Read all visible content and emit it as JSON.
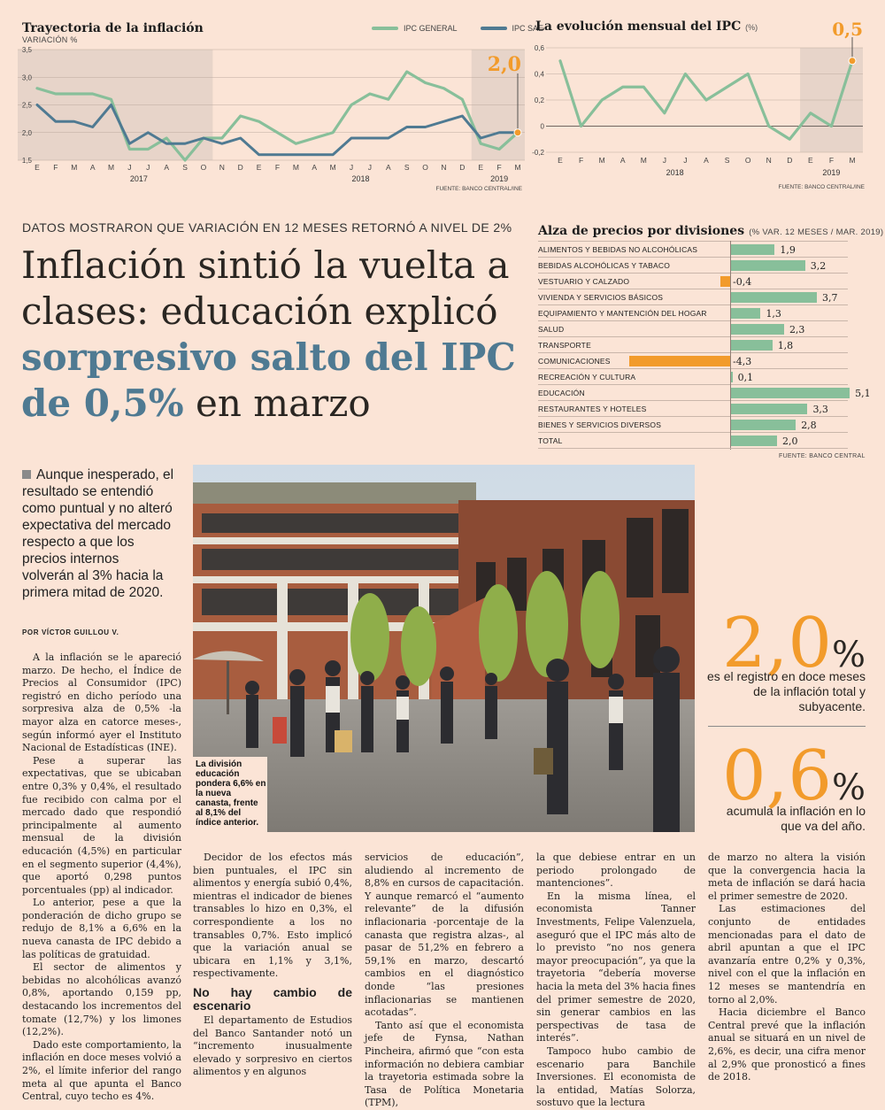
{
  "chart_left": {
    "title": "Trayectoria de la inflación",
    "ylabel": "VARIACIÓN %",
    "legend": [
      {
        "name": "IPC GENERAL",
        "color": "#88bf9a"
      },
      {
        "name": "IPC SAE",
        "color": "#4f7a92"
      }
    ],
    "highlight_value": "2,0",
    "source": "FUENTE: BANCO CENTRAL/INE",
    "year_labels": [
      "2017",
      "2018",
      "2019"
    ]
  },
  "chart_right": {
    "title": "La evolución mensual del IPC",
    "unit": "(%)",
    "highlight_value": "0,5",
    "source": "FUENTE: BANCO CENTRAL/INE",
    "year_labels": [
      "2018",
      "2019"
    ]
  },
  "chart_data": [
    {
      "type": "line",
      "title": "Trayectoria de la inflación",
      "ylabel": "VARIACIÓN %",
      "ylim": [
        1.5,
        3.5
      ],
      "yticks": [
        "1,5",
        "2,0",
        "2,5",
        "3,0",
        "3,5"
      ],
      "categories": [
        "E",
        "F",
        "M",
        "A",
        "M",
        "J",
        "J",
        "A",
        "S",
        "O",
        "N",
        "D",
        "E",
        "F",
        "M",
        "A",
        "M",
        "J",
        "J",
        "A",
        "S",
        "O",
        "N",
        "D",
        "E",
        "F",
        "M"
      ],
      "series": [
        {
          "name": "IPC GENERAL",
          "color": "#88bf9a",
          "values": [
            2.8,
            2.7,
            2.7,
            2.7,
            2.6,
            1.7,
            1.7,
            1.9,
            1.5,
            1.9,
            1.9,
            2.3,
            2.2,
            2.0,
            1.8,
            1.9,
            2.0,
            2.5,
            2.7,
            2.6,
            3.1,
            2.9,
            2.8,
            2.6,
            1.8,
            1.7,
            2.0
          ]
        },
        {
          "name": "IPC SAE",
          "color": "#4f7a92",
          "values": [
            2.5,
            2.2,
            2.2,
            2.1,
            2.5,
            1.8,
            2.0,
            1.8,
            1.8,
            1.9,
            1.8,
            1.9,
            1.6,
            1.6,
            1.6,
            1.6,
            1.6,
            1.9,
            1.9,
            1.9,
            2.1,
            2.1,
            2.2,
            2.3,
            1.9,
            2.0,
            2.0
          ]
        }
      ],
      "grid": true
    },
    {
      "type": "line",
      "title": "La evolución mensual del IPC",
      "ylim": [
        -0.2,
        0.6
      ],
      "yticks": [
        "-0,2",
        "0",
        "0,2",
        "0,4",
        "0,6"
      ],
      "categories": [
        "E",
        "F",
        "M",
        "A",
        "M",
        "J",
        "J",
        "A",
        "S",
        "O",
        "N",
        "D",
        "E",
        "F",
        "M"
      ],
      "series": [
        {
          "name": "",
          "color": "#88bf9a",
          "values": [
            0.5,
            0.0,
            0.2,
            0.3,
            0.3,
            0.1,
            0.4,
            0.2,
            0.3,
            0.4,
            0.0,
            -0.1,
            0.1,
            0.0,
            0.5
          ]
        }
      ],
      "grid": true
    },
    {
      "type": "bar",
      "title": "Alza de precios por divisiones",
      "subtitle": "(% VAR. 12 MESES / MAR. 2019)",
      "categories": [
        "ALIMENTOS Y BEBIDAS NO ALCOHÓLICAS",
        "BEBIDAS ALCOHÓLICAS Y TABACO",
        "VESTUARIO Y CALZADO",
        "VIVIENDA Y SERVICIOS BÁSICOS",
        "EQUIPAMIENTO Y MANTENCIÓN DEL HOGAR",
        "SALUD",
        "TRANSPORTE",
        "COMUNICACIONES",
        "RECREACIÓN Y CULTURA",
        "EDUCACIÓN",
        "RESTAURANTES Y HOTELES",
        "BIENES Y SERVICIOS DIVERSOS",
        "TOTAL"
      ],
      "values": [
        1.9,
        3.2,
        -0.4,
        3.7,
        1.3,
        2.3,
        1.8,
        -4.3,
        0.1,
        5.1,
        3.3,
        2.8,
        2.0
      ],
      "value_labels": [
        "1,9",
        "3,2",
        "-0,4",
        "3,7",
        "1,3",
        "2,3",
        "1,8",
        "-4,3",
        "0,1",
        "5,1",
        "3,3",
        "2,8",
        "2,0"
      ],
      "positive_color": "#88bf9a",
      "negative_color": "#f29b2b",
      "source": "FUENTE: BANCO CENTRAL"
    }
  ],
  "bar_chart": {
    "title": "Alza de precios por divisiones",
    "subtitle": "(% VAR. 12 MESES / MAR. 2019)",
    "source": "FUENTE: BANCO CENTRAL"
  },
  "article": {
    "kicker": "DATOS MOSTRARON QUE VARIACIÓN EN 12 MESES RETORNÓ A NIVEL DE 2%",
    "headline_1": "Inflación sintió la vuelta a",
    "headline_2": "clases: educación explicó",
    "headline_3": "sorpresivo salto del IPC",
    "headline_4a": "de 0,5%",
    "headline_4b": " en marzo",
    "lead": "Aunque inesperado, el resultado se entendió como puntual y no alteró expectativa del mercado respecto a que los precios internos volverán al 3% hacia la primera mitad de 2020.",
    "byline": "POR VÍCTOR GUILLOU V.",
    "photo_caption": "La división educación pondera 6,6% en la nueva canasta, frente al 8,1% del índice anterior.",
    "col1": [
      "A la inflación se le apareció marzo. De hecho, el Índice de Precios al Consumidor (IPC) registró en dicho período una sorpresiva alza de 0,5% -la mayor alza en catorce meses-, según informó ayer el Instituto Nacional de Estadísticas (INE).",
      "Pese a superar las expectativas, que se ubicaban entre 0,3% y 0,4%, el resultado fue recibido con calma por el mercado dado que respondió principalmente al aumento mensual de la división educación (4,5%) en particular en el segmento superior (4,4%), que aportó 0,298 puntos porcentuales (pp) al indicador.",
      "Lo anterior, pese a que la ponderación de dicho grupo se redujo de 8,1% a 6,6% en la nueva canasta de IPC debido a las políticas de gratuidad.",
      "El sector de alimentos y bebidas no alcohólicas avanzó 0,8%, aportando 0,159 pp, destacando los incrementos del tomate (12,7%) y los limones (12,2%).",
      "Dado este comportamiento, la inflación en doce meses volvió a 2%, el límite inferior del rango meta al que apunta el Banco Central, cuyo techo es 4%."
    ],
    "col2": [
      "Decidor de los efectos más bien puntuales, el IPC sin alimentos y energía subió 0,4%, mientras el indicador de bienes transables lo hizo en 0,3%, el correspondiente a los no transables 0,7%. Esto implicó que la variación anual se ubicara en 1,1% y 3,1%, respectivamente."
    ],
    "subhead": "No hay cambio de escenario",
    "col2b": [
      "El departamento de Estudios del Banco Santander notó un “incremento inusualmente elevado y sorpresivo en ciertos alimentos y en algunos"
    ],
    "col3": [
      "servicios de educación”, aludiendo al incremento de 8,8% en cursos de capacitación. Y aunque remarcó el “aumento relevante” de la difusión inflacionaria -porcentaje de la canasta que registra alzas-, al pasar de 51,2% en febrero a 59,1% en marzo, descartó cambios en el diagnóstico donde “las presiones inflacionarias se mantienen acotadas”.",
      "Tanto así que el economista jefe de Fynsa, Nathan Pincheira, afirmó que “con esta información no debiera cambiar la trayetoria estimada sobre la Tasa de Política Monetaria (TPM),"
    ],
    "col4": [
      "la que debiese entrar en un periodo prolongado de mantenciones”.",
      "En la misma línea, el economista Tanner Investments, Felipe Valenzuela, aseguró que el IPC más alto de lo previsto “no nos genera mayor preocupación”, ya que la trayetoria “debería moverse hacia la meta del 3% hacia fines del primer semestre de 2020, sin generar cambios en las perspectivas de tasa de interés”.",
      "Tampoco hubo cambio de escenario para Banchile Inversiones. El economista de la entidad, Matías Solorza, sostuvo que la lectura"
    ],
    "col5": [
      "de marzo no altera la visión que la convergencia hacia la meta de inflación se dará hacia el primer semestre de 2020.",
      "Las estimaciones del conjunto de entidades mencionadas para el dato de abril apuntan a que el IPC avanzaría entre 0,2% y 0,3%, nivel con el que la inflación en 12 meses se mantendría en torno al 2,0%.",
      "Hacia diciembre el Banco Central prevé que la inflación anual se situará en un nivel de 2,6%, es decir, una cifra menor al 2,9% que pronosticó a fines de 2018."
    ]
  },
  "callouts": [
    {
      "number": "2,0",
      "unit": "%",
      "text": "es el registro en doce meses de la inflación total y subyacente."
    },
    {
      "number": "0,6",
      "unit": "%",
      "text": "acumula la inflación en lo que va del año."
    }
  ]
}
